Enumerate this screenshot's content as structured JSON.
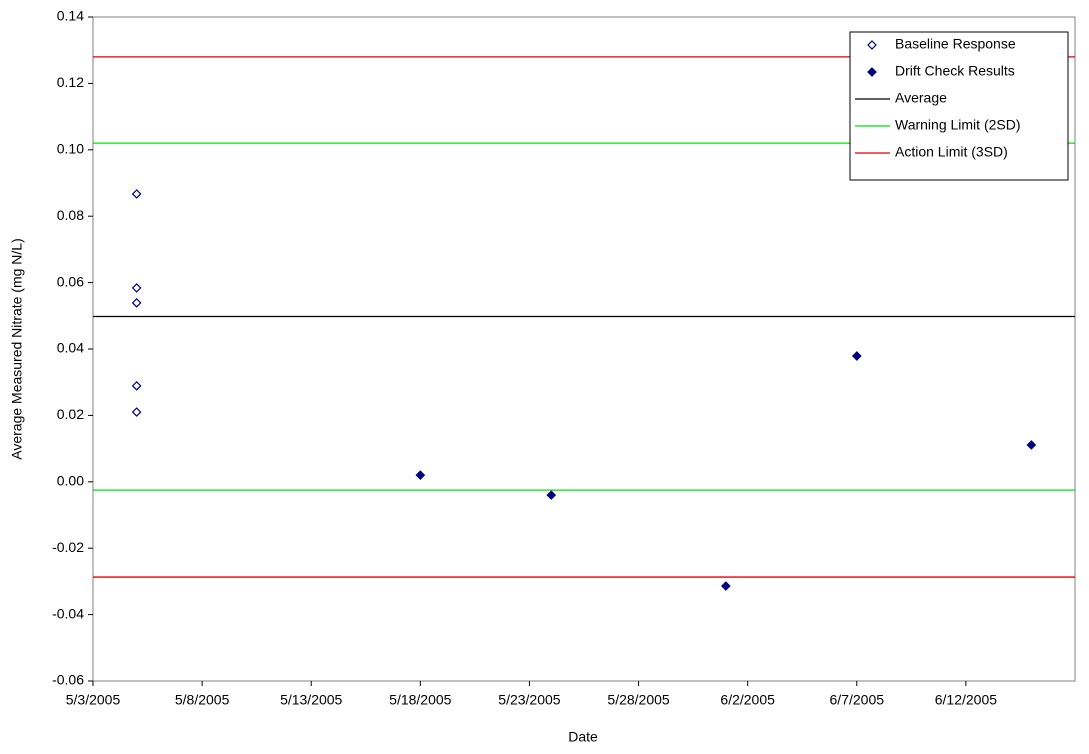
{
  "chart_data": {
    "type": "scatter",
    "x_label": "Date",
    "y_label": "Average Measured Nitrate (mg N/L)",
    "xlim": [
      "5/3/2005",
      "6/17/2005"
    ],
    "xticks": [
      "5/3/2005",
      "5/8/2005",
      "5/13/2005",
      "5/18/2005",
      "5/23/2005",
      "5/28/2005",
      "6/2/2005",
      "6/7/2005",
      "6/12/2005"
    ],
    "ylim": [
      -0.06,
      0.14
    ],
    "yticks": [
      {
        "value": -0.06,
        "label": "-0.06"
      },
      {
        "value": -0.04,
        "label": "-0.04"
      },
      {
        "value": -0.02,
        "label": "-0.02"
      },
      {
        "value": 0,
        "label": "0.00"
      },
      {
        "value": 0.02,
        "label": "0.02"
      },
      {
        "value": 0.04,
        "label": "0.04"
      },
      {
        "value": 0.06,
        "label": "0.06"
      },
      {
        "value": 0.08,
        "label": "0.08"
      },
      {
        "value": 0.1,
        "label": "0.10"
      },
      {
        "value": 0.12,
        "label": "0.12"
      },
      {
        "value": 0.14,
        "label": "0.14"
      }
    ],
    "grid": false,
    "legend": "top-right",
    "series": [
      {
        "name": "Baseline Response",
        "color": "#000080",
        "marker": "open-diamond",
        "x": [
          "5/5/2005",
          "5/5/2005",
          "5/5/2005",
          "5/5/2005",
          "5/5/2005"
        ],
        "values": [
          0.0867,
          0.0584,
          0.0539,
          0.0289,
          0.021
        ]
      },
      {
        "name": "Drift Check Results",
        "color": "#000080",
        "marker": "filled-diamond",
        "x": [
          "5/18/2005",
          "5/24/2005",
          "6/1/2005",
          "6/7/2005",
          "6/15/2005"
        ],
        "values": [
          0.002,
          -0.004,
          -0.0314,
          0.0379,
          0.0111
        ]
      },
      {
        "name": "Average",
        "color": "#000000",
        "marker": "hline",
        "values": [
          0.0498
        ]
      },
      {
        "name": "Warning Limit (2SD)",
        "color": "#00e000",
        "marker": "hline",
        "values": [
          0.102,
          -0.0025
        ]
      },
      {
        "name": "Action Limit (3SD)",
        "color": "#e00000",
        "marker": "hline",
        "values": [
          0.128,
          -0.0287
        ]
      }
    ]
  }
}
